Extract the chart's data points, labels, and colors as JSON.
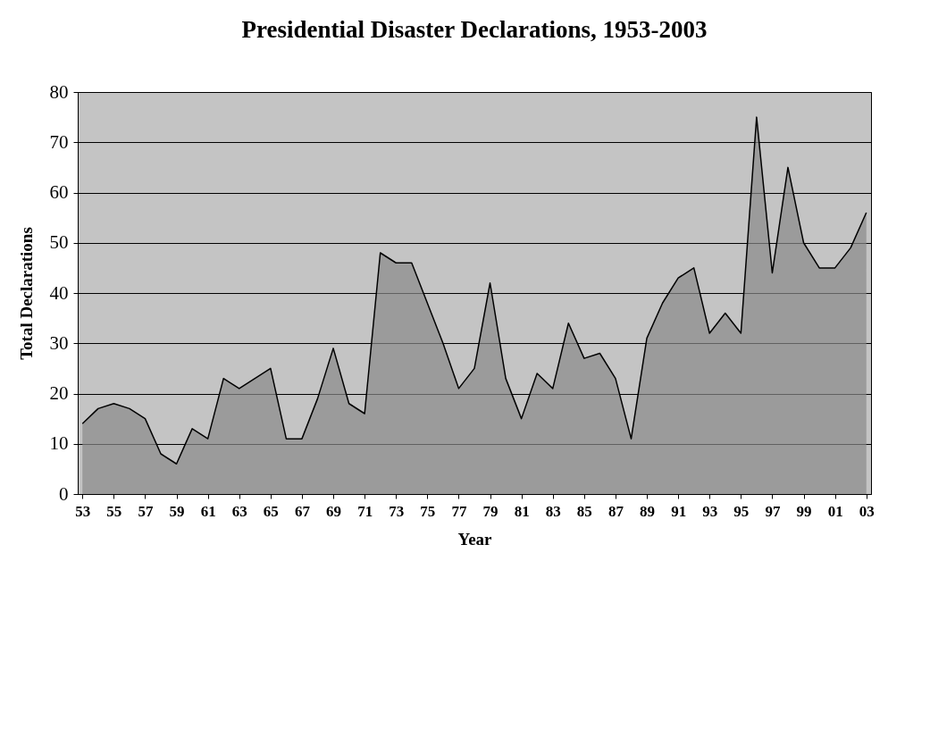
{
  "chart_data": {
    "type": "area",
    "title": "Presidential Disaster Declarations, 1953-2003",
    "xlabel": "Year",
    "ylabel": "Total Declarations",
    "categories": [
      "53",
      null,
      "55",
      null,
      "57",
      null,
      "59",
      null,
      "61",
      null,
      "63",
      null,
      "65",
      null,
      "67",
      null,
      "69",
      null,
      "71",
      null,
      "73",
      null,
      "75",
      null,
      "77",
      null,
      "79",
      null,
      "81",
      null,
      "83",
      null,
      "85",
      null,
      "87",
      null,
      "89",
      null,
      "91",
      null,
      "93",
      null,
      "95",
      null,
      "97",
      null,
      "99",
      null,
      "01",
      null,
      "03"
    ],
    "series": [
      {
        "color": "#8a8a8a",
        "values": [
          14,
          17,
          18,
          17,
          15,
          8,
          6,
          13,
          11,
          23,
          21,
          23,
          25,
          11,
          11,
          19,
          29,
          18,
          16,
          48,
          46,
          46,
          38,
          30,
          21,
          25,
          42,
          23,
          15,
          24,
          21,
          34,
          27,
          28,
          23,
          11,
          31,
          38,
          43,
          45,
          32,
          36,
          32,
          75,
          44,
          65,
          50,
          45,
          45,
          49,
          56
        ]
      }
    ],
    "ylim": [
      0,
      80
    ],
    "yticks": [
      0,
      10,
      20,
      30,
      40,
      50,
      60,
      70,
      80
    ],
    "grid": "y"
  }
}
